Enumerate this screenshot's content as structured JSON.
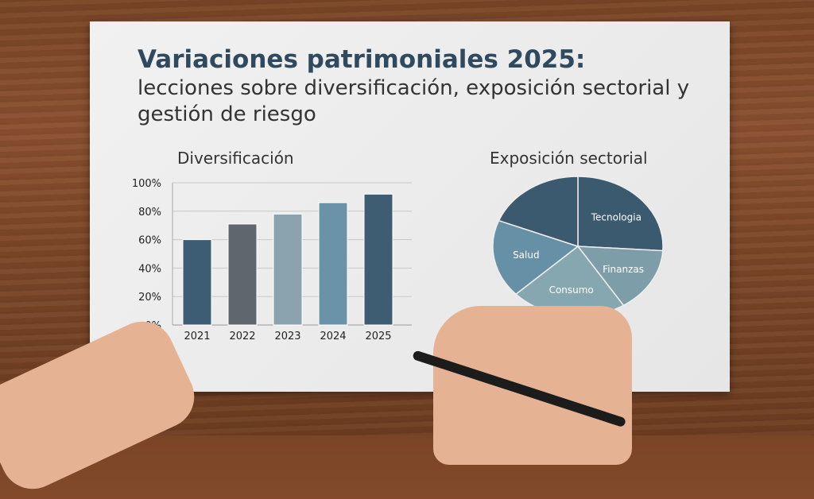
{
  "title": "Variaciones patrimoniales 2025:",
  "subtitle": "lecciones sobre diversificación, exposición sectorial y gestión de riesgo",
  "chart_data": [
    {
      "type": "bar",
      "title": "Diversificación",
      "categories": [
        "2021",
        "2022",
        "2023",
        "2024",
        "2025"
      ],
      "values": [
        60,
        71,
        78,
        86,
        92
      ],
      "colors": [
        "#3d5d74",
        "#5f676e",
        "#8aa3ae",
        "#6a93a8",
        "#3f5d72"
      ],
      "ylim": [
        0,
        100
      ],
      "yticks": [
        "0%",
        "20%",
        "40%",
        "60%",
        "80%",
        "100%"
      ],
      "grid": true
    },
    {
      "type": "pie",
      "title": "Exposición sectorial",
      "labels": [
        "Tecnologia",
        "Finanzas",
        "Consumo",
        "Salud",
        ""
      ],
      "values": [
        26,
        15,
        22,
        18,
        19
      ],
      "colors": [
        "#3b5a70",
        "#7d9ea9",
        "#86a6b0",
        "#6690a5",
        "#3b5a70"
      ]
    }
  ]
}
